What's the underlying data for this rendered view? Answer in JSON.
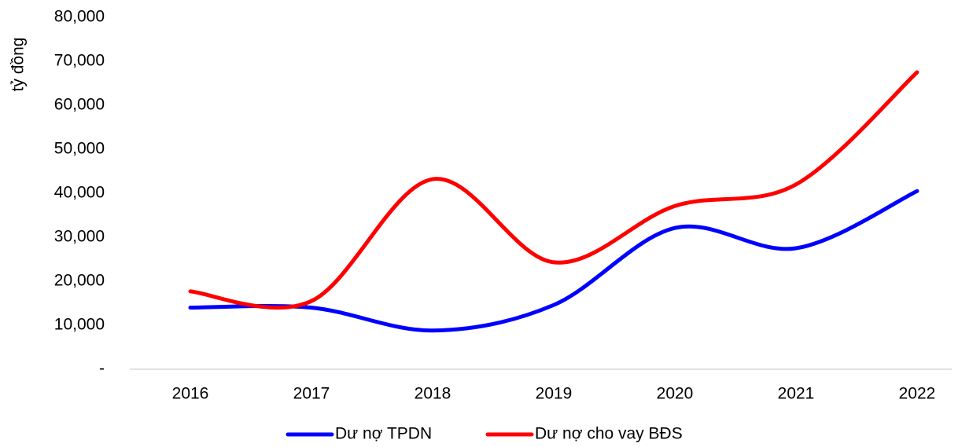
{
  "chart_data": {
    "type": "line",
    "y_label": "tỷ đồng",
    "categories": [
      "2016",
      "2017",
      "2018",
      "2019",
      "2020",
      "2021",
      "2022"
    ],
    "series": [
      {
        "name": "Dư nợ TPDN",
        "color": "#0000ff",
        "values": [
          14000,
          14000,
          8800,
          14600,
          32100,
          27500,
          40500
        ]
      },
      {
        "name": "Dư nợ cho vay BĐS",
        "color": "#ff0000",
        "values": [
          17700,
          15500,
          43200,
          24300,
          37100,
          42000,
          67500
        ]
      }
    ],
    "ylim": [
      0,
      80000
    ],
    "yticks": [
      {
        "value": 0,
        "label": "-"
      },
      {
        "value": 10000,
        "label": "10,000"
      },
      {
        "value": 20000,
        "label": "20,000"
      },
      {
        "value": 30000,
        "label": "30,000"
      },
      {
        "value": 40000,
        "label": "40,000"
      },
      {
        "value": 50000,
        "label": "50,000"
      },
      {
        "value": 60000,
        "label": "60,000"
      },
      {
        "value": 70000,
        "label": "70,000"
      },
      {
        "value": 80000,
        "label": "80,000"
      }
    ],
    "grid": false,
    "smooth": true,
    "legend": "bottom"
  }
}
